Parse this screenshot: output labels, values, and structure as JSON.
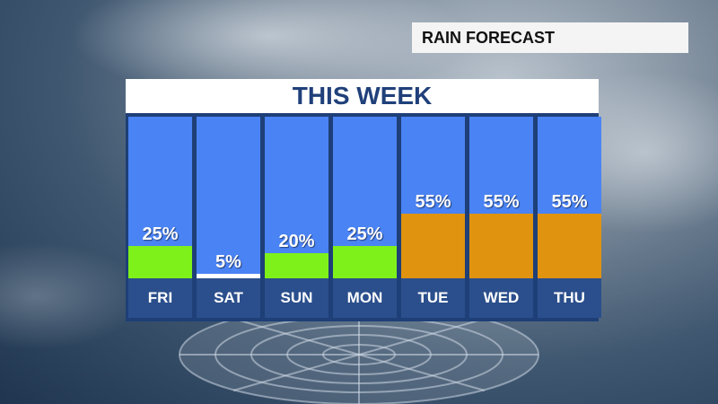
{
  "header_tag": "RAIN FORECAST",
  "colors": {
    "column_bg": "#4a83f4",
    "day_bg": "#2b4f8c",
    "low": "#7ff11a",
    "very_low": "#ffffff",
    "medium": "#e0930f"
  },
  "chart_data": {
    "type": "bar",
    "title": "THIS WEEK",
    "categories": [
      "FRI",
      "SAT",
      "SUN",
      "MON",
      "TUE",
      "WED",
      "THU"
    ],
    "values": [
      25,
      5,
      20,
      25,
      55,
      55,
      55
    ],
    "labels": [
      "25%",
      "5%",
      "20%",
      "25%",
      "55%",
      "55%",
      "55%"
    ],
    "ylim": [
      0,
      100
    ],
    "bar_colors": [
      "#7ff11a",
      "#ffffff",
      "#7ff11a",
      "#7ff11a",
      "#e0930f",
      "#e0930f",
      "#e0930f"
    ]
  }
}
